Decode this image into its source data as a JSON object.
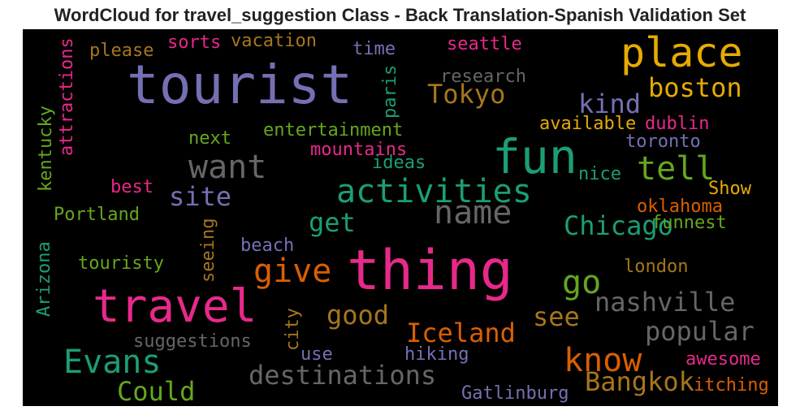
{
  "title": "WordCloud for travel_suggestion Class - Back Translation-Spanish Validation Set",
  "words": [
    {
      "text": "tourist",
      "color": "#7570b3"
    },
    {
      "text": "place",
      "color": "#e6ab02"
    },
    {
      "text": "thing",
      "color": "#e7298a"
    },
    {
      "text": "fun",
      "color": "#1b9e77"
    },
    {
      "text": "travel",
      "color": "#e7298a"
    },
    {
      "text": "activities",
      "color": "#1b9e77"
    },
    {
      "text": "want",
      "color": "#666666"
    },
    {
      "text": "name",
      "color": "#666666"
    },
    {
      "text": "tell",
      "color": "#66a61e"
    },
    {
      "text": "boston",
      "color": "#e6ab02"
    },
    {
      "text": "kind",
      "color": "#7570b3"
    },
    {
      "text": "Tokyo",
      "color": "#a6761d"
    },
    {
      "text": "site",
      "color": "#7570b3"
    },
    {
      "text": "get",
      "color": "#1b9e77"
    },
    {
      "text": "give",
      "color": "#d95f02"
    },
    {
      "text": "go",
      "color": "#66a61e"
    },
    {
      "text": "Chicago",
      "color": "#1b9e77"
    },
    {
      "text": "nashville",
      "color": "#666666"
    },
    {
      "text": "good",
      "color": "#a6761d"
    },
    {
      "text": "see",
      "color": "#a6761d"
    },
    {
      "text": "Evans",
      "color": "#1b9e77"
    },
    {
      "text": "Iceland",
      "color": "#d95f02"
    },
    {
      "text": "popular",
      "color": "#666666"
    },
    {
      "text": "know",
      "color": "#d95f02"
    },
    {
      "text": "destinations",
      "color": "#666666"
    },
    {
      "text": "Could",
      "color": "#66a61e"
    },
    {
      "text": "Bangkok",
      "color": "#a6761d"
    },
    {
      "text": "please",
      "color": "#a6761d"
    },
    {
      "text": "sorts",
      "color": "#e7298a"
    },
    {
      "text": "vacation",
      "color": "#a6761d"
    },
    {
      "text": "time",
      "color": "#7570b3"
    },
    {
      "text": "seattle",
      "color": "#e7298a"
    },
    {
      "text": "research",
      "color": "#666666"
    },
    {
      "text": "attractions",
      "color": "#e7298a"
    },
    {
      "text": "kentucky",
      "color": "#66a61e"
    },
    {
      "text": "paris",
      "color": "#1b9e77"
    },
    {
      "text": "available",
      "color": "#e6ab02"
    },
    {
      "text": "dublin",
      "color": "#e7298a"
    },
    {
      "text": "toronto",
      "color": "#7570b3"
    },
    {
      "text": "next",
      "color": "#66a61e"
    },
    {
      "text": "entertainment",
      "color": "#66a61e"
    },
    {
      "text": "mountains",
      "color": "#e7298a"
    },
    {
      "text": "ideas",
      "color": "#1b9e77"
    },
    {
      "text": "nice",
      "color": "#1b9e77"
    },
    {
      "text": "best",
      "color": "#e7298a"
    },
    {
      "text": "Show",
      "color": "#e6ab02"
    },
    {
      "text": "oklahoma",
      "color": "#d95f02"
    },
    {
      "text": "Portland",
      "color": "#66a61e"
    },
    {
      "text": "funnest",
      "color": "#66a61e"
    },
    {
      "text": "seeing",
      "color": "#a6761d"
    },
    {
      "text": "Arizona",
      "color": "#1b9e77"
    },
    {
      "text": "beach",
      "color": "#7570b3"
    },
    {
      "text": "touristy",
      "color": "#66a61e"
    },
    {
      "text": "london",
      "color": "#a6761d"
    },
    {
      "text": "city",
      "color": "#a6761d"
    },
    {
      "text": "suggestions",
      "color": "#666666"
    },
    {
      "text": "use",
      "color": "#7570b3"
    },
    {
      "text": "hiking",
      "color": "#7570b3"
    },
    {
      "text": "awesome",
      "color": "#e7298a"
    },
    {
      "text": "itching",
      "color": "#d95f02"
    },
    {
      "text": "Gatlinburg",
      "color": "#7570b3"
    }
  ]
}
